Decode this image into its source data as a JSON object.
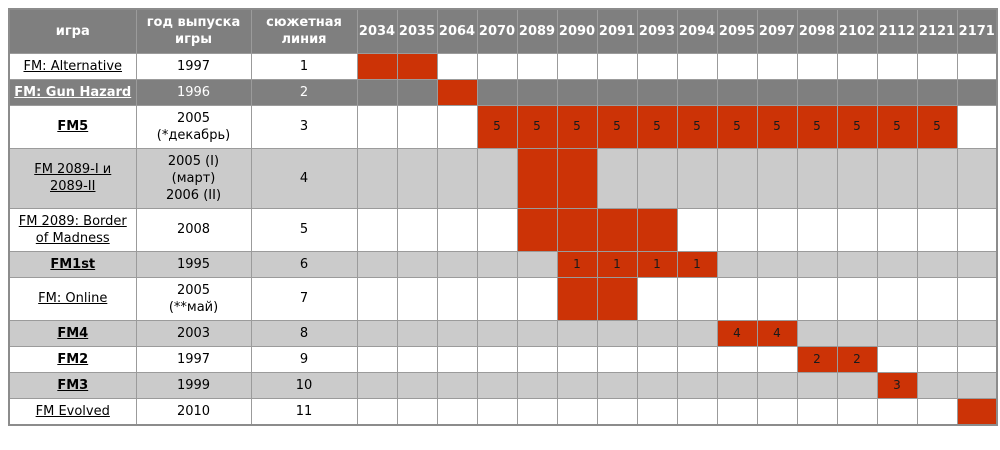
{
  "chart_data": {
    "type": "table",
    "subtype": "gantt-timeline",
    "title": "",
    "column_headers": {
      "game": "игра",
      "release": "год выпуска\nигры",
      "storyline": "сюжетная\nлиния"
    },
    "year_columns": [
      "2034",
      "2035",
      "2064",
      "2070",
      "2089",
      "2090",
      "2091",
      "2093",
      "2094",
      "2095",
      "2097",
      "2098",
      "2102",
      "2112",
      "2121",
      "2171"
    ],
    "rows": [
      {
        "game": "FM: Alternative",
        "bold": false,
        "release": "1997",
        "storyline": "1",
        "shade": "white",
        "marks": {
          "2034": "",
          "2035": ""
        }
      },
      {
        "game": "FM: Gun Hazard",
        "bold": true,
        "release": "1996",
        "storyline": "2",
        "shade": "dark",
        "marks": {
          "2064": ""
        }
      },
      {
        "game": "FM5",
        "bold": true,
        "release": "2005\n(*декабрь)",
        "storyline": "3",
        "shade": "white",
        "marks": {
          "2070": "5",
          "2089": "5",
          "2090": "5",
          "2091": "5",
          "2093": "5",
          "2094": "5",
          "2095": "5",
          "2097": "5",
          "2098": "5",
          "2102": "5",
          "2112": "5",
          "2121": "5"
        }
      },
      {
        "game": "FM 2089-I и\n2089-II",
        "bold": false,
        "release": "2005 (I)\n(март)\n2006 (II)",
        "storyline": "4",
        "shade": "light",
        "marks": {
          "2089": "",
          "2090": ""
        }
      },
      {
        "game": "FM 2089: Border\nof Madness",
        "bold": false,
        "release": "2008",
        "storyline": "5",
        "shade": "white",
        "marks": {
          "2089": "",
          "2090": "",
          "2091": "",
          "2093": ""
        }
      },
      {
        "game": "FM1st",
        "bold": true,
        "release": "1995",
        "storyline": "6",
        "shade": "light",
        "marks": {
          "2090": "1",
          "2091": "1",
          "2093": "1",
          "2094": "1"
        }
      },
      {
        "game": "FM: Online",
        "bold": false,
        "release": "2005\n(**май)",
        "storyline": "7",
        "shade": "white",
        "marks": {
          "2090": "",
          "2091": ""
        }
      },
      {
        "game": "FM4",
        "bold": true,
        "release": "2003",
        "storyline": "8",
        "shade": "light",
        "marks": {
          "2095": "4",
          "2097": "4"
        }
      },
      {
        "game": "FM2",
        "bold": true,
        "release": "1997",
        "storyline": "9",
        "shade": "white",
        "marks": {
          "2098": "2",
          "2102": "2"
        }
      },
      {
        "game": "FM3",
        "bold": true,
        "release": "1999",
        "storyline": "10",
        "shade": "light",
        "marks": {
          "2112": "3"
        }
      },
      {
        "game": "FM Evolved",
        "bold": false,
        "release": "2010",
        "storyline": "11",
        "shade": "white",
        "marks": {
          "2171": ""
        }
      }
    ],
    "colors": {
      "header_bg": "#7f7f7f",
      "header_text": "#ffffff",
      "dark_row_bg": "#7f7f7f",
      "light_row_bg": "#cbcbcb",
      "white_row_bg": "#ffffff",
      "mark_red": "#cc3306",
      "grid_line": "#9b9b9b",
      "text": "#000000"
    }
  }
}
